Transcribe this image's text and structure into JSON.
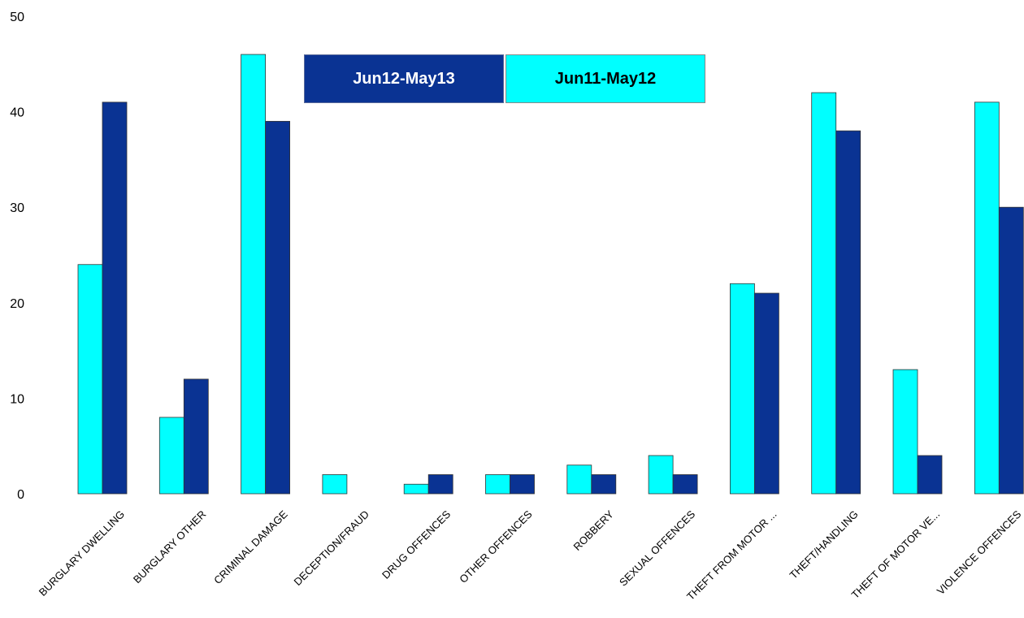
{
  "chart_data": {
    "type": "bar",
    "categories": [
      "BURGLARY DWELLING",
      "BURGLARY OTHER",
      "CRIMINAL DAMAGE",
      "DECEPTION/FRAUD",
      "DRUG OFFENCES",
      "OTHER OFFENCES",
      "ROBBERY",
      "SEXUAL OFFENCES",
      "THEFT FROM MOTOR ...",
      "THEFT/HANDLING",
      "THEFT OF MOTOR VE...",
      "VIOLENCE OFFENCES"
    ],
    "series": [
      {
        "name": "Jun11-May12",
        "color": "#00ffff",
        "values": [
          24,
          8,
          46,
          2,
          1,
          2,
          3,
          4,
          22,
          42,
          13,
          41
        ]
      },
      {
        "name": "Jun12-May13",
        "color": "#0a3393",
        "values": [
          41,
          12,
          39,
          0,
          2,
          2,
          2,
          2,
          21,
          38,
          4,
          30
        ]
      }
    ],
    "ylim": [
      0,
      50
    ],
    "yticks": [
      "0",
      "10",
      "20",
      "30",
      "40",
      "50"
    ],
    "grid": false,
    "legend_position": "top-center"
  },
  "legend": {
    "first_label": "Jun12-May13",
    "second_label": "Jun11-May12"
  }
}
